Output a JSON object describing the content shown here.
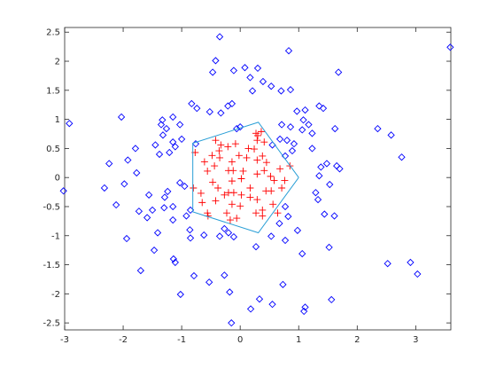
{
  "chart_data": {
    "type": "scatter",
    "xlim": [
      -3,
      3.6
    ],
    "ylim": [
      -2.62,
      2.58
    ],
    "xticks": [
      -3,
      -2,
      -1,
      0,
      1,
      2,
      3
    ],
    "yticks": [
      -2.5,
      -2,
      -1.5,
      -1,
      -0.5,
      0,
      0.5,
      1,
      1.5,
      2,
      2.5
    ],
    "series": [
      {
        "color": "#0000ff",
        "marker": "diamond",
        "x": [
          3.59,
          -0.35,
          -0.42,
          -0.47,
          -0.11,
          0.08,
          0.3,
          0.83,
          1.68,
          0.17,
          0.39,
          0.53,
          0.7,
          0.86,
          0.21,
          -0.14,
          -0.21,
          -0.74,
          -0.52,
          -0.33,
          -0.83,
          -1.15,
          -1.33,
          -2.03,
          -2.92,
          -1.35,
          -1.26,
          -1.03,
          -1.0,
          -1.15,
          -1.45,
          -1.38,
          -1.21,
          -1.11,
          -1.32,
          -1.79,
          -1.92,
          -2.24,
          -1.77,
          -2.32,
          -3.02,
          -1.98,
          -1.56,
          -1.24,
          -1.29,
          -2.12,
          -1.73,
          -1.5,
          -1.3,
          -1.15,
          -1.03,
          -0.95,
          -0.85,
          -0.92,
          -1.15,
          -1.59,
          -1.94,
          -1.41,
          -0.86,
          -0.85,
          -0.62,
          -0.35,
          -0.27,
          -0.2,
          -0.11,
          -1.47,
          -1.14,
          -1.11,
          -1.7,
          -0.79,
          -0.53,
          -0.27,
          -1.02,
          -0.18,
          -0.15,
          0.18,
          0.33,
          0.55,
          0.73,
          0.27,
          0.53,
          0.77,
          0.67,
          0.82,
          0.77,
          0.98,
          1.06,
          1.11,
          1.09,
          1.56,
          1.52,
          1.61,
          1.44,
          1.33,
          1.29,
          1.53,
          1.35,
          1.38,
          1.48,
          1.7,
          1.65,
          1.23,
          1.23,
          1.17,
          1.08,
          1.06,
          1.11,
          1.42,
          1.62,
          1.35,
          0.97,
          0.71,
          0.68,
          0.86,
          0.8,
          0.92,
          0.89,
          0.77,
          0.55,
          0.0,
          -0.06,
          -0.76,
          2.35,
          2.58,
          2.76,
          2.52,
          2.91,
          3.03
        ],
        "y": [
          2.24,
          2.42,
          2.01,
          1.81,
          1.84,
          1.89,
          1.88,
          2.18,
          1.81,
          1.72,
          1.65,
          1.57,
          1.49,
          1.51,
          1.49,
          1.27,
          1.23,
          1.19,
          1.13,
          1.11,
          1.27,
          1.04,
          0.99,
          1.04,
          0.93,
          0.91,
          0.84,
          0.91,
          0.66,
          0.61,
          0.56,
          0.4,
          0.43,
          0.53,
          0.73,
          0.5,
          0.3,
          0.24,
          0.08,
          -0.18,
          -0.23,
          -0.11,
          -0.3,
          -0.24,
          -0.34,
          -0.47,
          -0.58,
          -0.56,
          -0.52,
          -0.5,
          -0.09,
          -0.15,
          -0.56,
          -0.66,
          -0.73,
          -0.69,
          -1.05,
          -0.95,
          -0.9,
          -1.04,
          -0.99,
          -1.01,
          -0.88,
          -0.95,
          -1.02,
          -1.25,
          -1.4,
          -1.46,
          -1.6,
          -1.69,
          -1.8,
          -1.68,
          -2.01,
          -1.97,
          -2.5,
          -2.26,
          -2.09,
          -2.18,
          -1.84,
          -1.19,
          -1.01,
          -1.08,
          -0.79,
          -0.67,
          -0.5,
          -0.91,
          -1.31,
          -2.23,
          -2.3,
          -2.1,
          -1.2,
          -0.66,
          -0.63,
          -0.38,
          -0.26,
          -0.12,
          0.03,
          0.18,
          0.24,
          0.15,
          0.2,
          0.5,
          0.76,
          0.91,
          0.99,
          0.82,
          1.16,
          1.19,
          0.84,
          1.23,
          1.14,
          0.91,
          0.66,
          0.87,
          0.64,
          0.58,
          0.46,
          0.37,
          0.56,
          0.87,
          0.84,
          0.58,
          0.84,
          0.73,
          0.35,
          -1.48,
          -1.46,
          -1.66
        ]
      },
      {
        "color": "#ff0000",
        "marker": "plus",
        "x": [
          -0.42,
          -0.21,
          -0.08,
          -0.36,
          -0.48,
          -0.61,
          -0.35,
          -0.56,
          -0.44,
          -0.14,
          -0.02,
          0.14,
          0.27,
          0.36,
          0.29,
          0.41,
          0.24,
          0.38,
          0.29,
          0.45,
          0.41,
          0.52,
          0.44,
          0.17,
          0.02,
          -0.2,
          -0.12,
          0.05,
          0.29,
          -0.67,
          -0.8,
          -0.65,
          -0.56,
          -0.42,
          -0.38,
          -0.27,
          -0.2,
          -0.14,
          -0.23,
          -0.17,
          -0.06,
          0.0,
          0.02,
          0.17,
          0.29,
          0.27,
          0.38,
          0.53,
          0.56,
          0.64,
          0.71,
          0.76,
          0.85,
          0.68,
          -0.14,
          -0.47,
          -0.55,
          -0.11,
          0.11,
          -0.77,
          -0.33,
          0.3,
          0.38,
          0.58
        ],
        "y": [
          0.64,
          0.53,
          0.58,
          0.46,
          0.38,
          0.27,
          0.34,
          0.11,
          0.2,
          0.27,
          0.38,
          0.5,
          0.76,
          0.79,
          0.64,
          0.61,
          0.49,
          0.37,
          0.3,
          0.26,
          0.12,
          0.02,
          -0.23,
          -0.18,
          -0.02,
          0.12,
          0.12,
          0.11,
          0.06,
          -0.27,
          -0.18,
          -0.43,
          -0.61,
          -0.4,
          -0.18,
          -0.3,
          -0.26,
          -0.46,
          -0.61,
          -0.73,
          -0.7,
          -0.49,
          -0.3,
          -0.34,
          -0.38,
          -0.61,
          -0.56,
          -0.23,
          -0.46,
          -0.61,
          -0.18,
          -0.05,
          0.2,
          0.15,
          -0.06,
          -0.08,
          -0.66,
          -0.26,
          0.34,
          0.43,
          0.56,
          0.72,
          -0.66,
          -0.05
        ]
      },
      {
        "color": "#2a9fd6",
        "marker": "none",
        "x": [
          1,
          0.31,
          -0.81,
          -0.81,
          0.31,
          1
        ],
        "y": [
          0,
          0.95,
          0.59,
          -0.59,
          -0.95,
          0
        ]
      }
    ]
  }
}
